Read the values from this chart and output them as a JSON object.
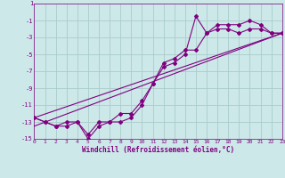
{
  "xlabel": "Windchill (Refroidissement éolien,°C)",
  "bg_color": "#cce8e8",
  "grid_color": "#aacccc",
  "line_color": "#800080",
  "xlim": [
    0,
    23
  ],
  "ylim": [
    -15,
    1
  ],
  "yticks": [
    1,
    -1,
    -3,
    -5,
    -7,
    -9,
    -11,
    -13,
    -15
  ],
  "xticks": [
    0,
    1,
    2,
    3,
    4,
    5,
    6,
    7,
    8,
    9,
    10,
    11,
    12,
    13,
    14,
    15,
    16,
    17,
    18,
    19,
    20,
    21,
    22,
    23
  ],
  "series1_x": [
    0,
    1,
    2,
    3,
    4,
    5,
    6,
    7,
    8,
    9,
    10,
    11,
    12,
    13,
    14,
    15,
    16,
    17,
    18,
    19,
    20,
    21,
    22,
    23
  ],
  "series1_y": [
    -12.5,
    -13,
    -13.5,
    -13.5,
    -13,
    -15,
    -13.5,
    -13,
    -13,
    -12.5,
    -11,
    -8.5,
    -6.5,
    -6,
    -5,
    -0.5,
    -2.5,
    -1.5,
    -1.5,
    -1.5,
    -1,
    -1.5,
    -2.5,
    -2.5
  ],
  "series2_x": [
    0,
    1,
    2,
    3,
    4,
    5,
    6,
    7,
    8,
    9,
    10,
    11,
    12,
    13,
    14,
    15,
    16,
    17,
    18,
    19,
    20,
    21,
    22,
    23
  ],
  "series2_y": [
    -12.5,
    -13,
    -13.5,
    -13,
    -13,
    -14.5,
    -13,
    -13,
    -12,
    -12,
    -10.5,
    -8.5,
    -6,
    -5.5,
    -4.5,
    -4.5,
    -2.5,
    -2,
    -2,
    -2.5,
    -2,
    -2,
    -2.5,
    -2.5
  ],
  "line1_x": [
    0,
    23
  ],
  "line1_y": [
    -12.5,
    -2.5
  ],
  "line2_x": [
    0,
    23
  ],
  "line2_y": [
    -13.5,
    -2.5
  ]
}
